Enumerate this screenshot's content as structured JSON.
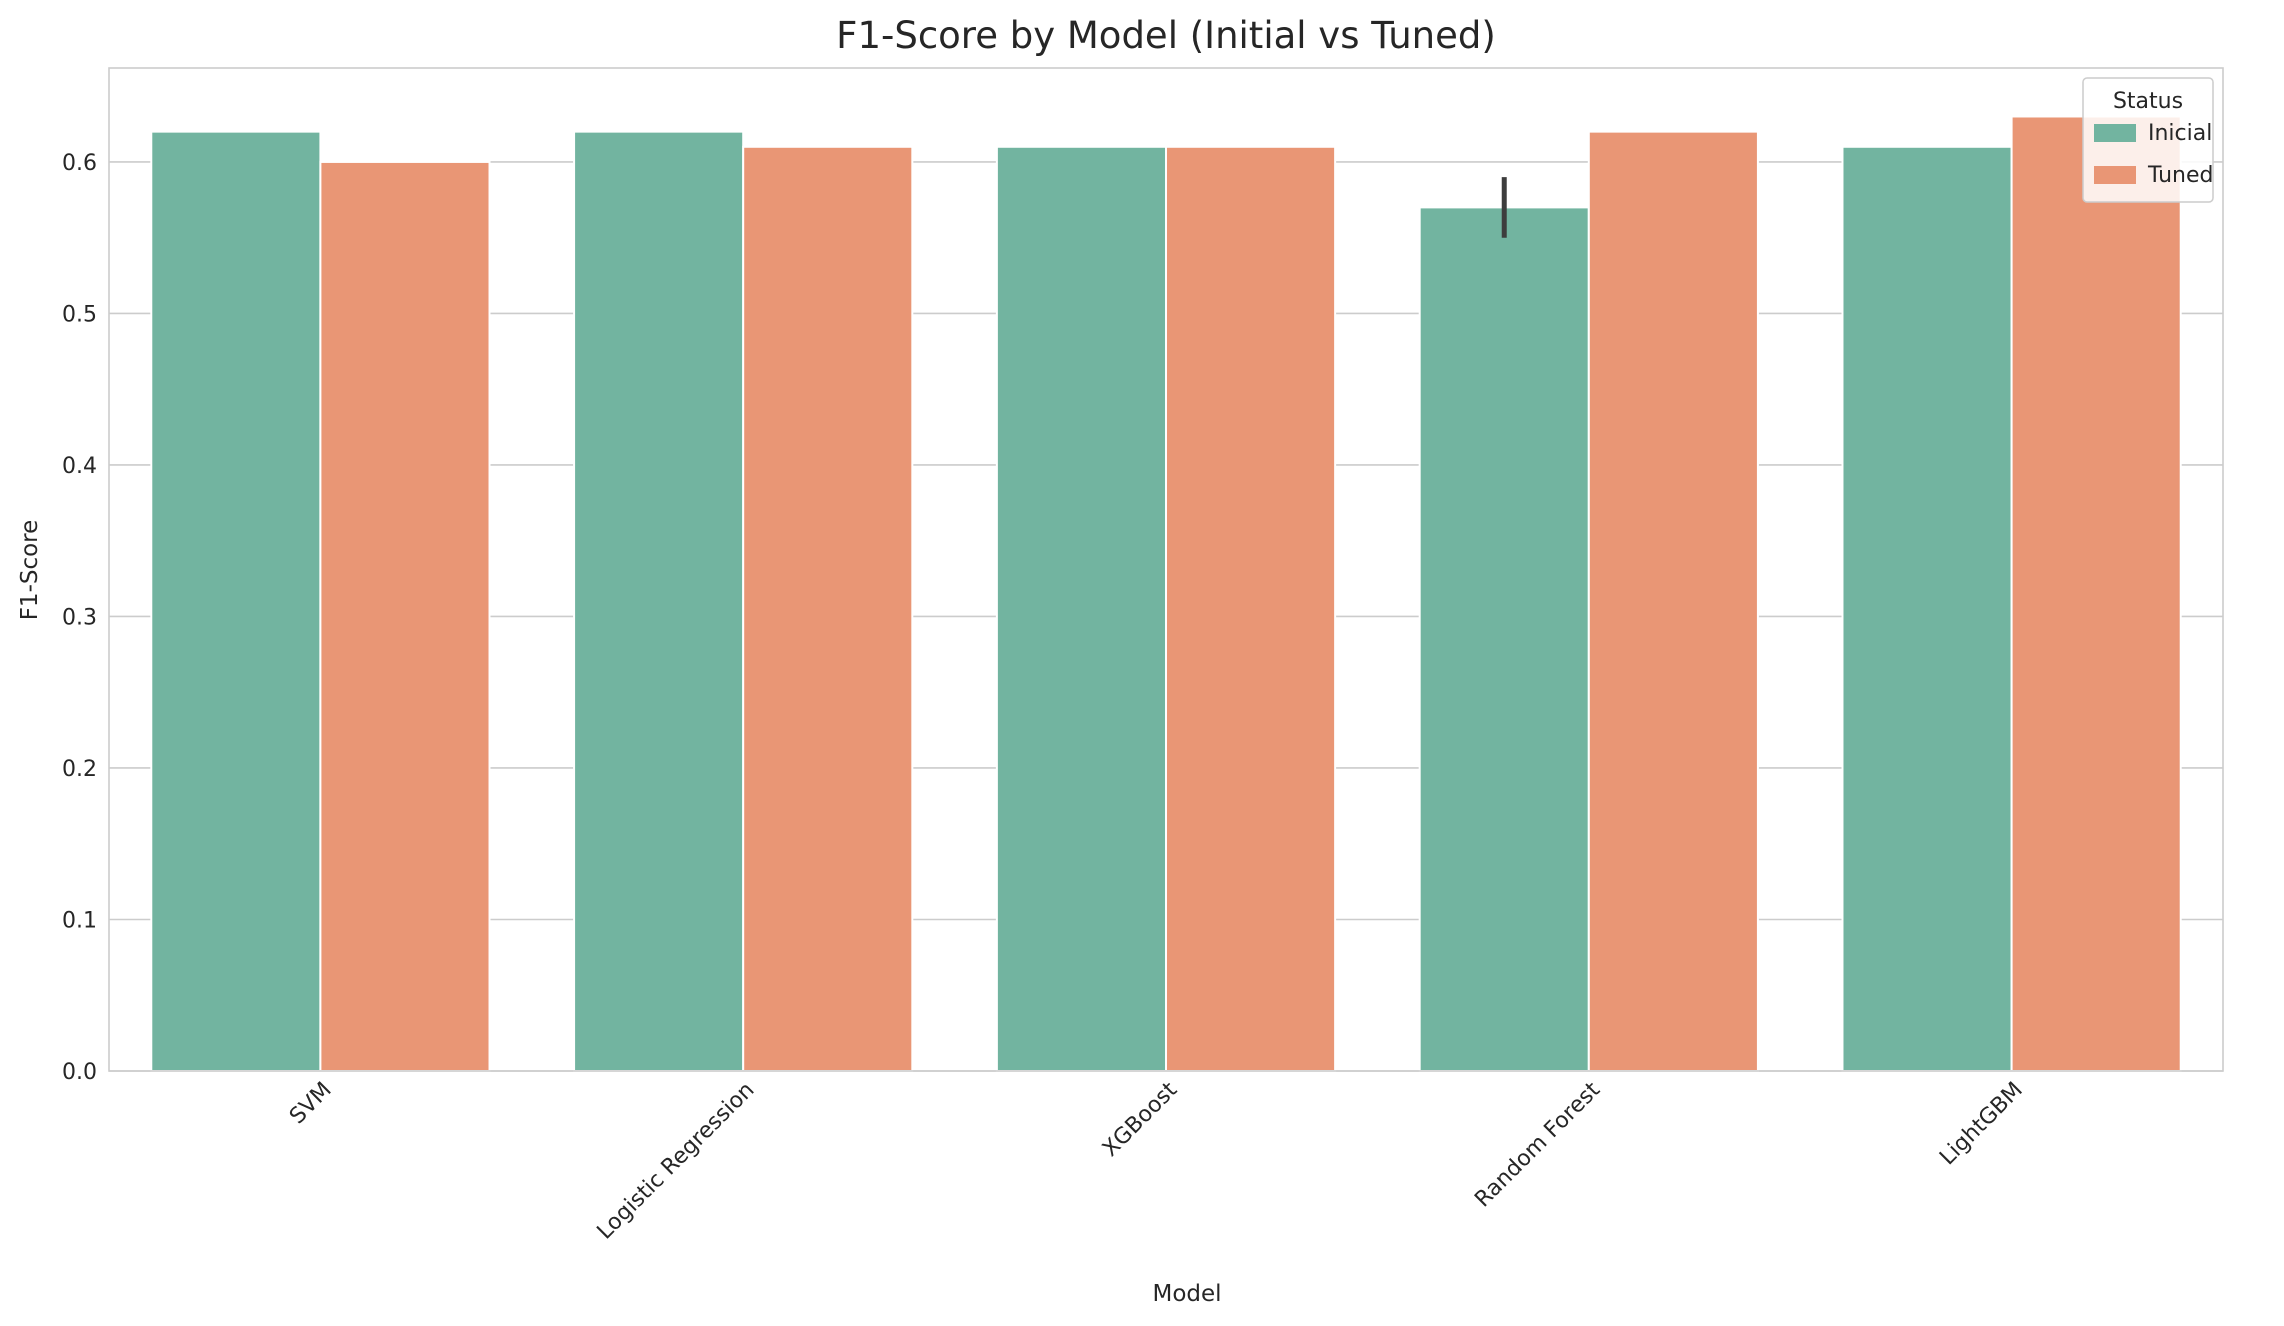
{
  "chart_data": {
    "type": "bar",
    "title": "F1-Score by Model (Initial vs Tuned)",
    "xlabel": "Model",
    "ylabel": "F1-Score",
    "categories": [
      "SVM",
      "Logistic Regression",
      "XGBoost",
      "Random Forest",
      "LightGBM"
    ],
    "series": [
      {
        "name": "Inicial",
        "color": "#72b4a0",
        "values": [
          0.62,
          0.62,
          0.61,
          0.57,
          0.61
        ],
        "error_low": [
          null,
          null,
          null,
          0.55,
          null
        ],
        "error_high": [
          null,
          null,
          null,
          0.59,
          null
        ]
      },
      {
        "name": "Tuned",
        "color": "#e99675",
        "values": [
          0.6,
          0.61,
          0.61,
          0.62,
          0.63
        ],
        "error_low": [
          null,
          null,
          null,
          null,
          null
        ],
        "error_high": [
          null,
          null,
          null,
          null,
          null
        ]
      }
    ],
    "ylim": [
      0,
      0.662
    ],
    "yticks": [
      "0.0",
      "0.1",
      "0.2",
      "0.3",
      "0.4",
      "0.5",
      "0.6"
    ],
    "grid": true,
    "legend": {
      "title": "Status",
      "placement": "top-right"
    }
  }
}
